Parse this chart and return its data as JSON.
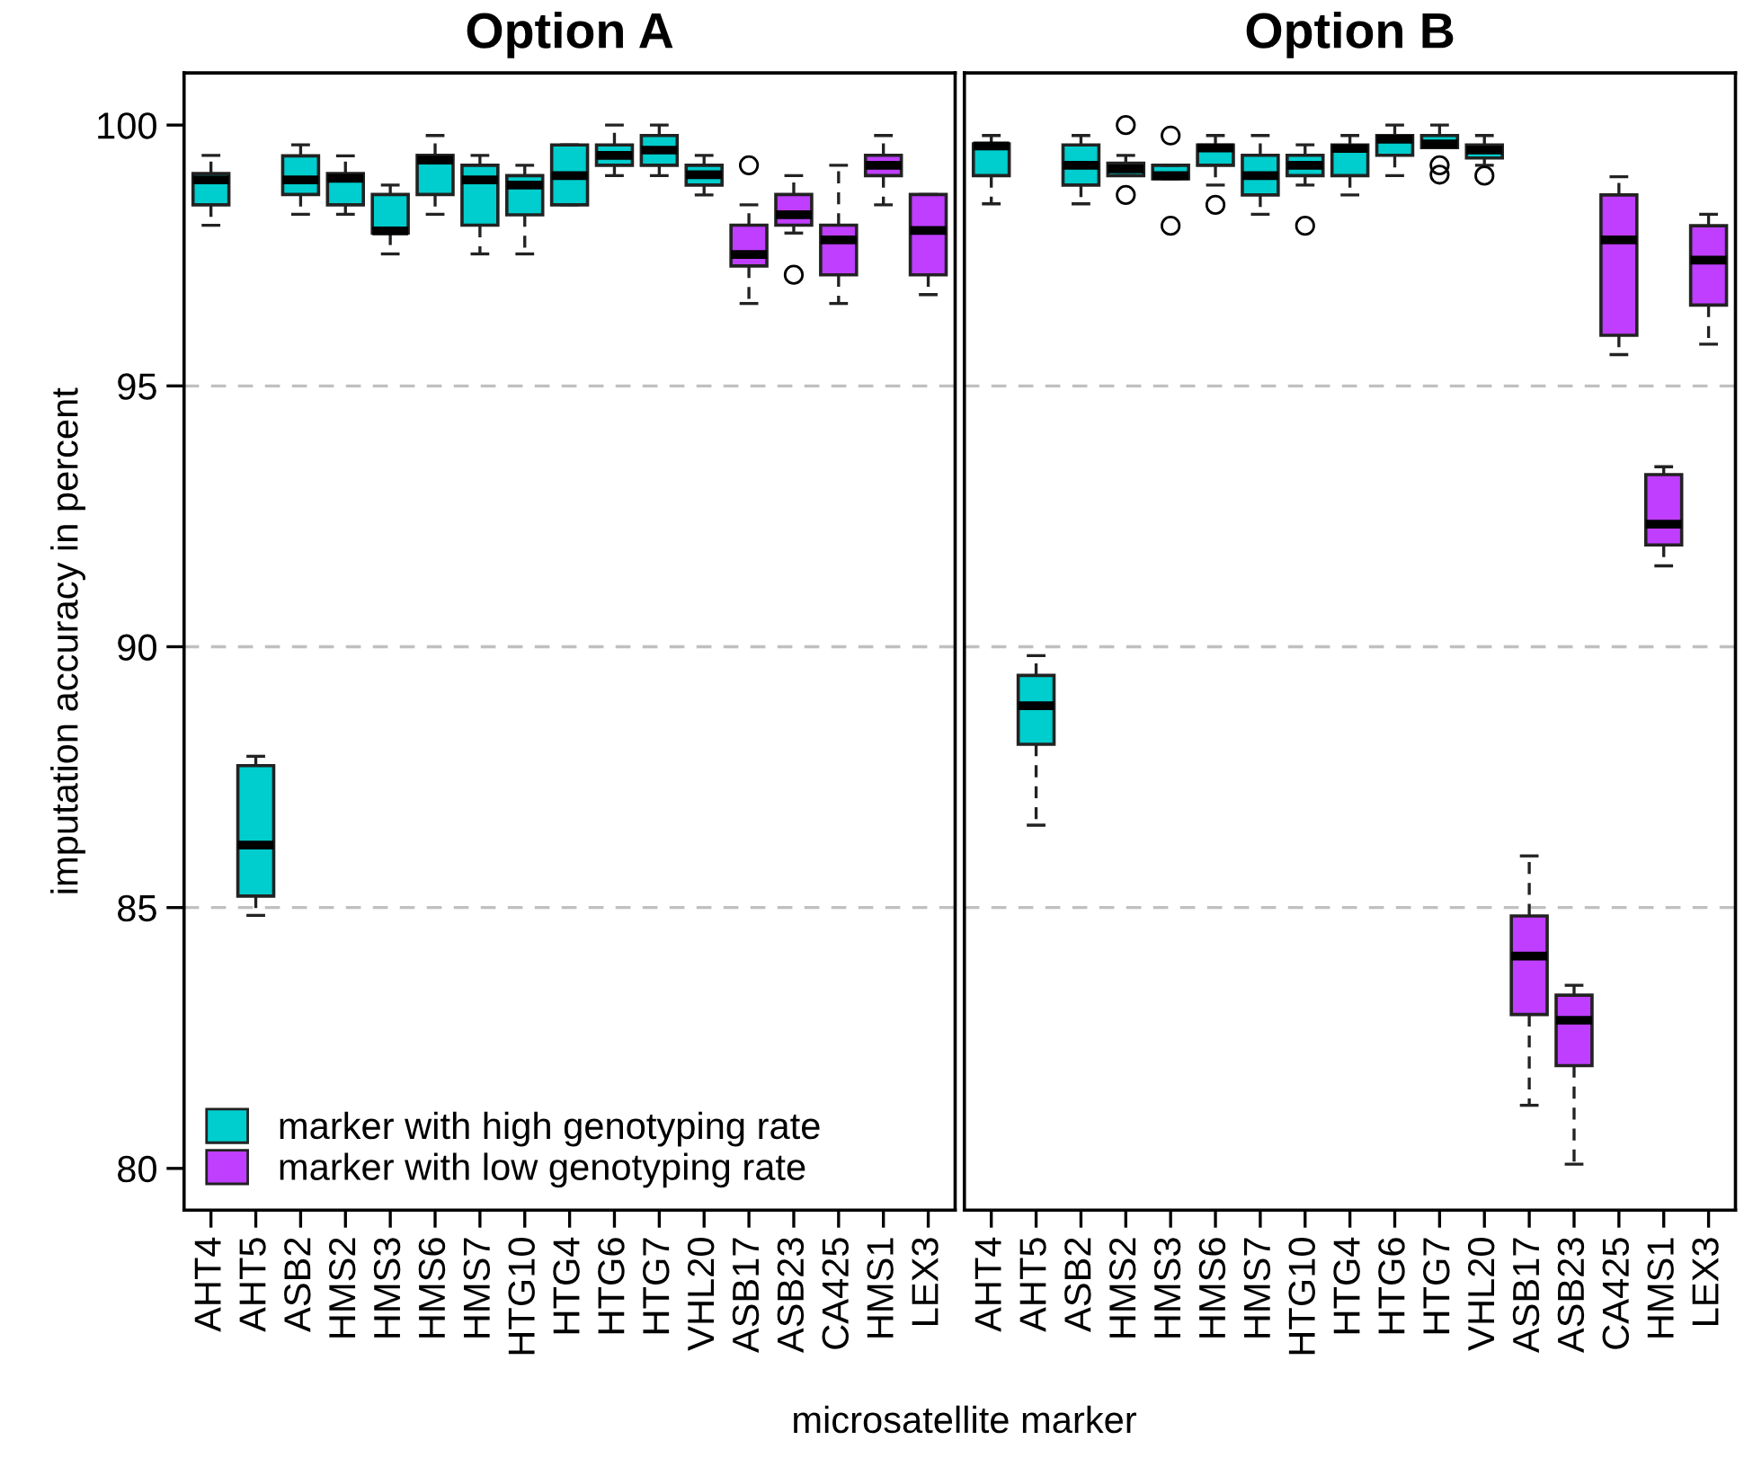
{
  "chart_data": [
    {
      "type": "box",
      "title": "Option A",
      "xlabel": "microsatellite marker",
      "ylabel": "imputation accuracy in percent",
      "categories": [
        "AHT4",
        "AHT5",
        "ASB2",
        "HMS2",
        "HMS3",
        "HMS6",
        "HMS7",
        "HTG10",
        "HTG4",
        "HTG6",
        "HTG7",
        "VHL20",
        "ASB17",
        "ASB23",
        "CA425",
        "HMS1",
        "LEX3"
      ],
      "ylim": [
        79.2,
        101.0
      ],
      "yticks": [
        80,
        85,
        90,
        95,
        100
      ],
      "legend": "bottom left",
      "ref_lines": [
        {
          "axis": "y",
          "value": 85,
          "line_style": "dashed",
          "color": "#c0c0c0"
        },
        {
          "axis": "y",
          "value": 90,
          "line_style": "dashed",
          "color": "#c0c0c0"
        },
        {
          "axis": "y",
          "value": 95,
          "line_style": "dashed",
          "color": "#c0c0c0"
        }
      ],
      "series": [
        {
          "name": "marker with high genotyping rate",
          "color": "#00cdcd",
          "boxes": [
            {
              "low": 98.08,
              "q1": 98.47,
              "median": 98.95,
              "q3": 99.07,
              "high": 99.42
            },
            {
              "low": 84.85,
              "q1": 85.22,
              "median": 86.2,
              "q3": 87.72,
              "high": 87.9
            },
            {
              "low": 98.29,
              "q1": 98.67,
              "median": 98.95,
              "q3": 99.41,
              "high": 99.62
            },
            {
              "low": 98.29,
              "q1": 98.47,
              "median": 98.98,
              "q3": 99.07,
              "high": 99.41
            },
            {
              "low": 97.53,
              "q1": 97.93,
              "median": 97.97,
              "q3": 98.67,
              "high": 98.85
            },
            {
              "low": 98.29,
              "q1": 98.67,
              "median": 99.33,
              "q3": 99.42,
              "high": 99.8
            },
            {
              "low": 97.53,
              "q1": 98.08,
              "median": 98.95,
              "q3": 99.23,
              "high": 99.42
            },
            {
              "low": 97.53,
              "q1": 98.28,
              "median": 98.85,
              "q3": 99.03,
              "high": 99.23
            },
            {
              "low": 98.47,
              "q1": 98.47,
              "median": 99.03,
              "q3": 99.62,
              "high": 99.62
            },
            {
              "low": 99.03,
              "q1": 99.23,
              "median": 99.42,
              "q3": 99.62,
              "high": 100.0
            },
            {
              "low": 99.03,
              "q1": 99.23,
              "median": 99.52,
              "q3": 99.8,
              "high": 100.0
            },
            {
              "low": 98.66,
              "q1": 98.85,
              "median": 99.05,
              "q3": 99.23,
              "high": 99.42
            },
            null,
            null,
            null,
            null,
            null
          ]
        },
        {
          "name": "marker with low genotyping rate",
          "color": "#bf3eff",
          "boxes": [
            null,
            null,
            null,
            null,
            null,
            null,
            null,
            null,
            null,
            null,
            null,
            null,
            {
              "low": 96.58,
              "q1": 97.3,
              "median": 97.52,
              "q3": 98.08,
              "high": 98.47,
              "outliers": [
                99.23
              ]
            },
            {
              "low": 97.93,
              "q1": 98.08,
              "median": 98.28,
              "q3": 98.67,
              "high": 99.03,
              "outliers": [
                97.13
              ]
            },
            {
              "low": 96.58,
              "q1": 97.13,
              "median": 97.8,
              "q3": 98.08,
              "high": 99.23
            },
            {
              "low": 98.47,
              "q1": 99.03,
              "median": 99.23,
              "q3": 99.42,
              "high": 99.8
            },
            {
              "low": 96.75,
              "q1": 97.13,
              "median": 97.98,
              "q3": 98.67,
              "high": 98.67
            }
          ]
        }
      ]
    },
    {
      "type": "box",
      "title": "Option B",
      "categories": [
        "AHT4",
        "AHT5",
        "ASB2",
        "HMS2",
        "HMS3",
        "HMS6",
        "HMS7",
        "HTG10",
        "HTG4",
        "HTG6",
        "HTG7",
        "VHL20",
        "ASB17",
        "ASB23",
        "CA425",
        "HMS1",
        "LEX3"
      ],
      "ylim": [
        79.2,
        101.0
      ],
      "yticks": [
        80,
        85,
        90,
        95,
        100
      ],
      "tick_labels": "x",
      "ref_lines": [
        {
          "axis": "y",
          "value": 85,
          "line_style": "dashed",
          "color": "#c0c0c0"
        },
        {
          "axis": "y",
          "value": 90,
          "line_style": "dashed",
          "color": "#c0c0c0"
        },
        {
          "axis": "y",
          "value": 95,
          "line_style": "dashed",
          "color": "#c0c0c0"
        }
      ],
      "series": [
        {
          "color": "#00cdcd",
          "boxes": [
            {
              "low": 98.49,
              "q1": 99.03,
              "median": 99.6,
              "q3": 99.64,
              "high": 99.8
            },
            {
              "low": 86.58,
              "q1": 88.13,
              "median": 88.87,
              "q3": 89.45,
              "high": 89.83
            },
            {
              "low": 98.49,
              "q1": 98.85,
              "median": 99.23,
              "q3": 99.62,
              "high": 99.8
            },
            {
              "low": 99.03,
              "q1": 99.03,
              "median": 99.16,
              "q3": 99.27,
              "high": 99.42,
              "outliers": [
                100.0,
                98.66
              ]
            },
            {
              "low": 98.97,
              "q1": 98.97,
              "median": 99.03,
              "q3": 99.23,
              "high": 99.23,
              "outliers": [
                99.8,
                98.07
              ]
            },
            {
              "low": 98.85,
              "q1": 99.23,
              "median": 99.56,
              "q3": 99.62,
              "high": 99.8,
              "outliers": [
                98.47
              ]
            },
            {
              "low": 98.29,
              "q1": 98.66,
              "median": 99.03,
              "q3": 99.42,
              "high": 99.8
            },
            {
              "low": 98.85,
              "q1": 99.03,
              "median": 99.23,
              "q3": 99.42,
              "high": 99.62,
              "outliers": [
                98.07
              ]
            },
            {
              "low": 98.66,
              "q1": 99.03,
              "median": 99.55,
              "q3": 99.62,
              "high": 99.8
            },
            {
              "low": 99.03,
              "q1": 99.42,
              "median": 99.73,
              "q3": 99.8,
              "high": 100.0
            },
            {
              "low": 99.57,
              "q1": 99.57,
              "median": 99.64,
              "q3": 99.8,
              "high": 100.0,
              "outliers": [
                99.23,
                99.05
              ]
            },
            {
              "low": 99.23,
              "q1": 99.37,
              "median": 99.52,
              "q3": 99.62,
              "high": 99.8,
              "outliers": [
                99.03
              ]
            },
            null,
            null,
            null,
            null,
            null
          ]
        },
        {
          "color": "#bf3eff",
          "boxes": [
            null,
            null,
            null,
            null,
            null,
            null,
            null,
            null,
            null,
            null,
            null,
            null,
            {
              "low": 81.21,
              "q1": 82.95,
              "median": 84.07,
              "q3": 84.84,
              "high": 85.99
            },
            {
              "low": 80.08,
              "q1": 81.97,
              "median": 82.84,
              "q3": 83.32,
              "high": 83.51
            },
            {
              "low": 95.6,
              "q1": 95.97,
              "median": 97.8,
              "q3": 98.66,
              "high": 99.01
            },
            {
              "low": 91.55,
              "q1": 91.95,
              "median": 92.35,
              "q3": 93.3,
              "high": 93.45
            },
            {
              "low": 95.8,
              "q1": 96.55,
              "median": 97.41,
              "q3": 98.07,
              "high": 98.29
            }
          ]
        }
      ]
    }
  ]
}
